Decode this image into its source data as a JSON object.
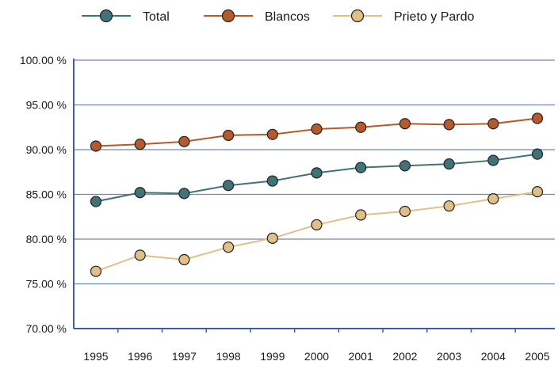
{
  "chart_data": {
    "type": "line",
    "title": "",
    "xlabel": "",
    "ylabel": "",
    "categories": [
      "1995",
      "1996",
      "1997",
      "1998",
      "1999",
      "2000",
      "2001",
      "2002",
      "2003",
      "2004",
      "2005"
    ],
    "ylim": [
      70,
      100
    ],
    "yticks": [
      70,
      75,
      80,
      85,
      90,
      95,
      100
    ],
    "ytick_labels": [
      "70.00 %",
      "75.00 %",
      "80.00 %",
      "85.00 %",
      "90.00 %",
      "95.00 %",
      "100.00 %"
    ],
    "grid": true,
    "legend_position": "top",
    "series": [
      {
        "name": "Total",
        "color": "#3f7378",
        "values": [
          84.2,
          85.2,
          85.1,
          86.0,
          86.5,
          87.4,
          88.0,
          88.2,
          88.4,
          88.8,
          89.5
        ]
      },
      {
        "name": "Blancos",
        "color": "#b65a2a",
        "values": [
          90.4,
          90.6,
          90.9,
          91.6,
          91.7,
          92.3,
          92.5,
          92.9,
          92.8,
          92.9,
          93.5
        ]
      },
      {
        "name": "Prieto y Pardo",
        "color": "#e2bf86",
        "values": [
          76.4,
          78.2,
          77.7,
          79.1,
          80.1,
          81.6,
          82.7,
          83.1,
          83.7,
          84.5,
          85.3
        ]
      }
    ]
  }
}
